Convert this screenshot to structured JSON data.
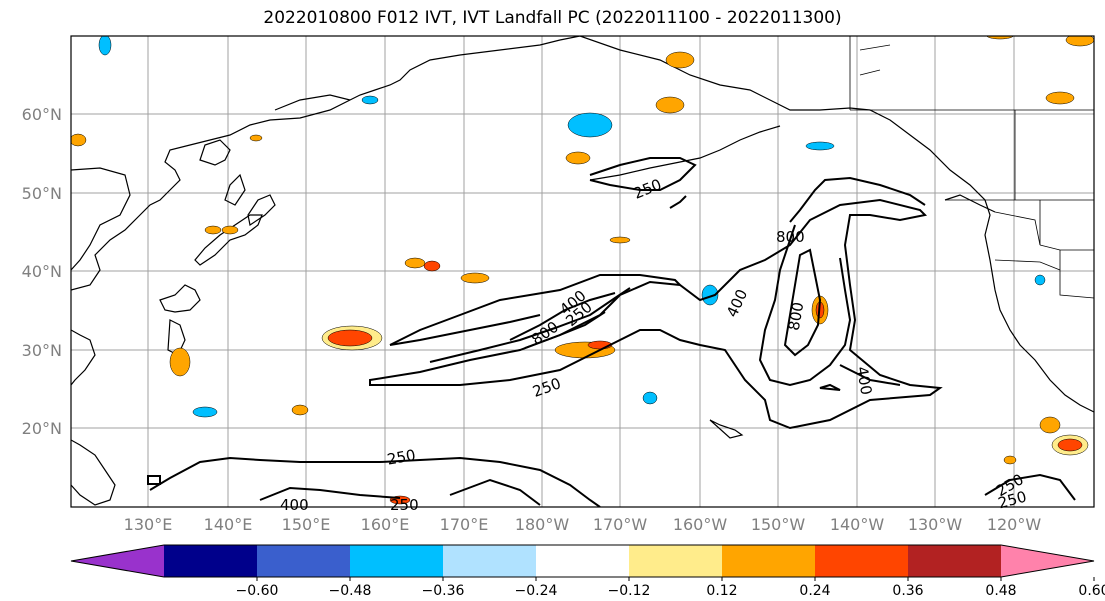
{
  "title": "2022010800 F012 IVT, IVT Landfall PC (2022011100 - 2022011300)",
  "lat_labels": [
    "60°N",
    "50°N",
    "40°N",
    "30°N",
    "20°N"
  ],
  "lon_labels": [
    "130°E",
    "140°E",
    "150°E",
    "160°E",
    "170°E",
    "180°W",
    "170°W",
    "160°W",
    "150°W",
    "140°W",
    "130°W",
    "120°W"
  ],
  "contour_labels": [
    "250",
    "250",
    "400",
    "800",
    "400",
    "800",
    "800",
    "250",
    "250",
    "400",
    "250",
    "250",
    "250",
    "400",
    "250"
  ],
  "colorbar": {
    "colors": [
      "#9932cc",
      "#00008b",
      "#3a5fcd",
      "#00bfff",
      "#b0e2ff",
      "#ffffff",
      "#ffec8b",
      "#ffa500",
      "#ff4500",
      "#b22222",
      "#ff82ab"
    ],
    "ticks": [
      "−0.60",
      "−0.48",
      "−0.36",
      "−0.24",
      "−0.12",
      "0.12",
      "0.24",
      "0.36",
      "0.48",
      "0.60"
    ]
  }
}
